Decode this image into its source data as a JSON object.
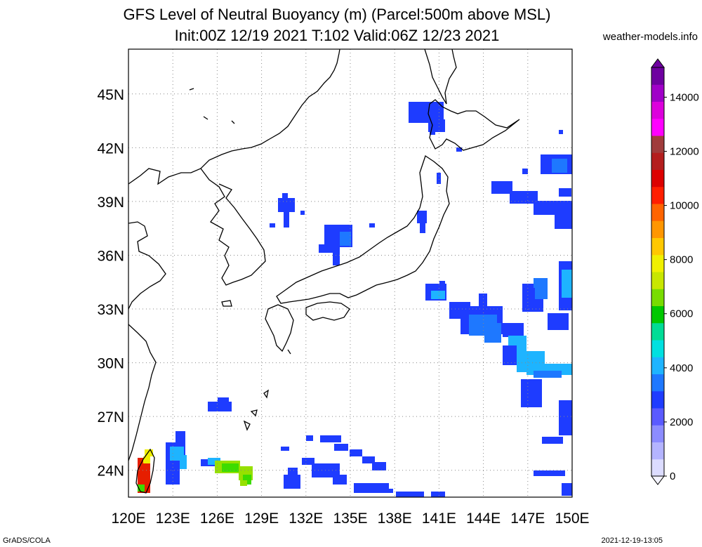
{
  "title": {
    "line1": "GFS Level of Neutral Buoyancy (m) (Parcel:500m above MSL)",
    "line2": "Init:00Z 12/19 2021 T:102 Valid:06Z 12/23 2021"
  },
  "site": "weather-models.info",
  "footer": {
    "left": "GrADS/COLA",
    "right": "2021-12-19-13:05"
  },
  "map": {
    "lon_range": [
      120,
      150
    ],
    "lat_range": [
      22.5,
      47.5
    ],
    "lon_ticks": [
      "120E",
      "123E",
      "126E",
      "129E",
      "132E",
      "135E",
      "138E",
      "141E",
      "144E",
      "147E",
      "150E"
    ],
    "lat_ticks": [
      "24N",
      "27N",
      "30N",
      "33N",
      "36N",
      "39N",
      "42N",
      "45N"
    ],
    "grid": true
  },
  "colorbar": {
    "ticks": [
      "0",
      "2000",
      "4000",
      "6000",
      "8000",
      "10000",
      "12000",
      "14000"
    ],
    "colors": [
      "#dcdcff",
      "#b4b4ff",
      "#8c8cff",
      "#5a5aff",
      "#1e3cff",
      "#1e78ff",
      "#1eb4ff",
      "#00e0e0",
      "#00dc96",
      "#00c800",
      "#78dc00",
      "#c8e600",
      "#f0f000",
      "#ffc800",
      "#ff9600",
      "#ff6400",
      "#ff1e00",
      "#dc0000",
      "#b41e1e",
      "#a03c3c",
      "#ff00ff",
      "#dc00dc",
      "#a000c8",
      "#6e00a0"
    ]
  },
  "patches_colors": {
    "blue": "#1e3cff",
    "mid": "#1e78ff",
    "cyan": "#1eb4ff",
    "aqua": "#40e0e0",
    "green": "#3cdc00",
    "lime": "#96e000",
    "red": "#e61e00",
    "yellow": "#f0f000"
  }
}
